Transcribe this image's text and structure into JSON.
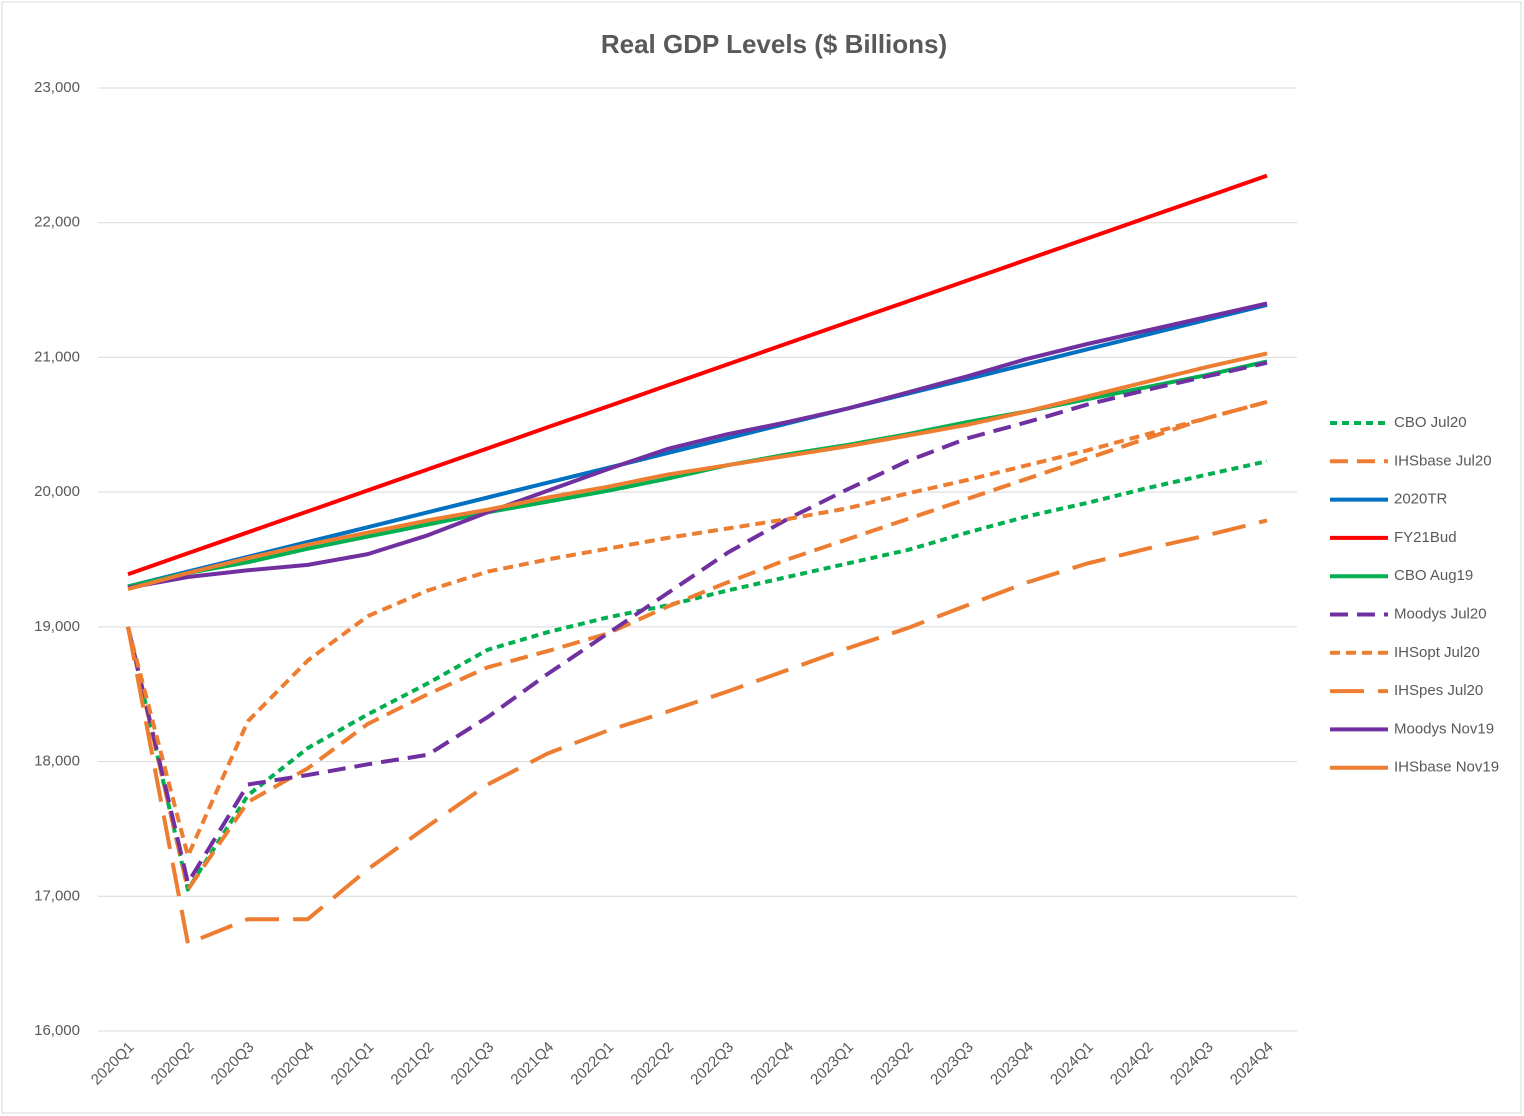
{
  "chart_data": {
    "type": "line",
    "title": "Real GDP Levels ($ Billions)",
    "categories": [
      "2020Q1",
      "2020Q2",
      "2020Q3",
      "2020Q4",
      "2021Q1",
      "2021Q2",
      "2021Q3",
      "2021Q4",
      "2022Q1",
      "2022Q2",
      "2022Q3",
      "2022Q4",
      "2023Q1",
      "2023Q2",
      "2023Q3",
      "2023Q4",
      "2024Q1",
      "2024Q2",
      "2024Q3",
      "2024Q4"
    ],
    "ylim": [
      16000,
      23000
    ],
    "yticks": [
      {
        "value": 16000,
        "label": "16,000"
      },
      {
        "value": 17000,
        "label": "17,000"
      },
      {
        "value": 18000,
        "label": "18,000"
      },
      {
        "value": 19000,
        "label": "19,000"
      },
      {
        "value": 20000,
        "label": "20,000"
      },
      {
        "value": 21000,
        "label": "21,000"
      },
      {
        "value": 22000,
        "label": "22,000"
      },
      {
        "value": 23000,
        "label": "23,000"
      }
    ],
    "grid": true,
    "legend": "right",
    "series": [
      {
        "name": "CBO Jul20",
        "color": "#00b050",
        "dash": "dotted",
        "values": [
          19000,
          17050,
          17750,
          18100,
          18350,
          18580,
          18830,
          18960,
          19070,
          19160,
          19270,
          19370,
          19470,
          19570,
          19700,
          19820,
          19920,
          20030,
          20130,
          20230
        ]
      },
      {
        "name": "IHSbase Jul20",
        "color": "#ed7d31",
        "dash": "medium",
        "values": [
          19000,
          17050,
          17700,
          17950,
          18280,
          18500,
          18700,
          18820,
          18950,
          19150,
          19330,
          19500,
          19650,
          19800,
          19950,
          20100,
          20250,
          20400,
          20550,
          20670
        ]
      },
      {
        "name": "2020TR",
        "color": "#0070c0",
        "dash": "solid",
        "values": [
          19300,
          19410,
          19520,
          19630,
          19740,
          19850,
          19960,
          20070,
          20180,
          20290,
          20400,
          20510,
          20620,
          20730,
          20840,
          20950,
          21060,
          21170,
          21280,
          21390
        ]
      },
      {
        "name": "FY21Bud",
        "color": "#ff0000",
        "dash": "solid",
        "values": [
          19390,
          19546,
          19702,
          19857,
          20013,
          20169,
          20325,
          20481,
          20636,
          20792,
          20948,
          21104,
          21260,
          21415,
          21571,
          21727,
          21883,
          22039,
          22194,
          22350
        ]
      },
      {
        "name": "CBO Aug19",
        "color": "#00b050",
        "dash": "solid",
        "values": [
          19300,
          19400,
          19480,
          19580,
          19670,
          19760,
          19850,
          19930,
          20010,
          20100,
          20200,
          20280,
          20350,
          20430,
          20520,
          20600,
          20690,
          20780,
          20870,
          20970
        ]
      },
      {
        "name": "Moodys Jul20",
        "color": "#7030a0",
        "dash": "medium",
        "values": [
          19000,
          17100,
          17830,
          17900,
          17980,
          18050,
          18330,
          18650,
          18950,
          19250,
          19550,
          19800,
          20020,
          20230,
          20400,
          20520,
          20650,
          20760,
          20860,
          20960
        ]
      },
      {
        "name": "IHSopt Jul20",
        "color": "#ed7d31",
        "dash": "short",
        "values": [
          19000,
          17300,
          18300,
          18750,
          19080,
          19270,
          19410,
          19500,
          19580,
          19660,
          19730,
          19800,
          19880,
          19990,
          20090,
          20200,
          20310,
          20430,
          20550,
          20670
        ]
      },
      {
        "name": "IHSpes Jul20",
        "color": "#ed7d31",
        "dash": "long",
        "values": [
          19000,
          16650,
          16830,
          16830,
          17200,
          17520,
          17830,
          18060,
          18230,
          18370,
          18520,
          18680,
          18840,
          18990,
          19160,
          19330,
          19470,
          19580,
          19680,
          19790
        ]
      },
      {
        "name": "Moodys Nov19",
        "color": "#7030a0",
        "dash": "solid",
        "values": [
          19290,
          19370,
          19420,
          19460,
          19540,
          19680,
          19850,
          20010,
          20170,
          20320,
          20430,
          20520,
          20620,
          20740,
          20860,
          20990,
          21100,
          21200,
          21300,
          21400
        ]
      },
      {
        "name": "IHSbase Nov19",
        "color": "#ed7d31",
        "dash": "solid",
        "values": [
          19280,
          19400,
          19510,
          19610,
          19700,
          19790,
          19870,
          19960,
          20040,
          20130,
          20200,
          20270,
          20340,
          20420,
          20500,
          20600,
          20710,
          20820,
          20930,
          21030
        ]
      }
    ]
  }
}
